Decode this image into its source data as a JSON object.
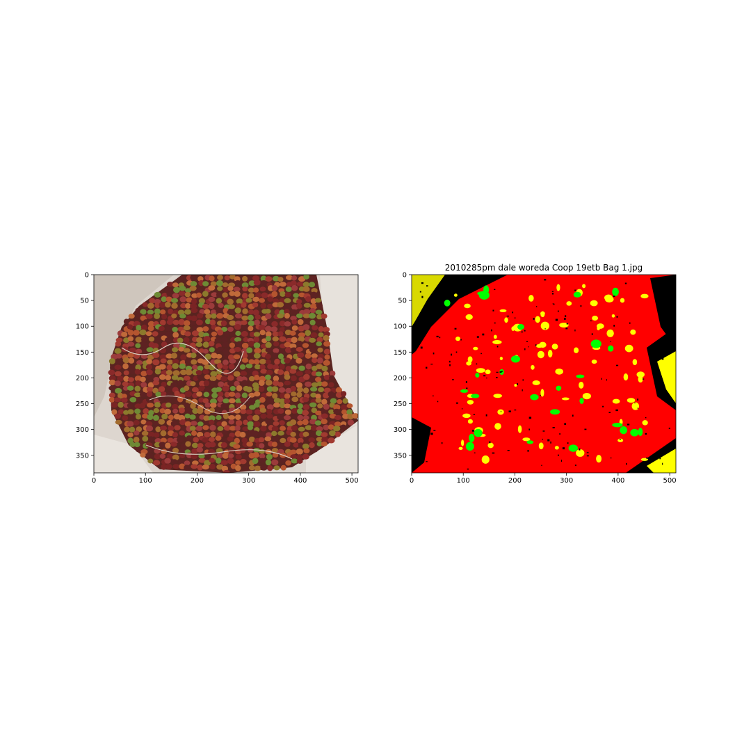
{
  "figure": {
    "left_panel": {
      "title": "",
      "image_description": "coffee cherries in burlap sack (red, yellow, green cherries)",
      "x_ticks": [
        "0",
        "100",
        "200",
        "300",
        "400",
        "500"
      ],
      "y_ticks": [
        "0",
        "50",
        "100",
        "150",
        "200",
        "250",
        "300",
        "350"
      ],
      "x_range": [
        0,
        512
      ],
      "y_range": [
        0,
        384
      ]
    },
    "right_panel": {
      "title": "2010285pm dale woreda Coop 19etb Bag 1.jpg",
      "image_description": "segmentation mask",
      "x_ticks": [
        "0",
        "100",
        "200",
        "300",
        "400",
        "500"
      ],
      "y_ticks": [
        "0",
        "50",
        "100",
        "150",
        "200",
        "250",
        "300",
        "350"
      ],
      "x_range": [
        0,
        512
      ],
      "y_range": [
        0,
        384
      ]
    },
    "colors": {
      "mask_red": "#ff0000",
      "mask_yellow": "#ffff00",
      "mask_green": "#00ff00",
      "mask_black": "#000000",
      "sack": "#ddd6cf"
    }
  }
}
